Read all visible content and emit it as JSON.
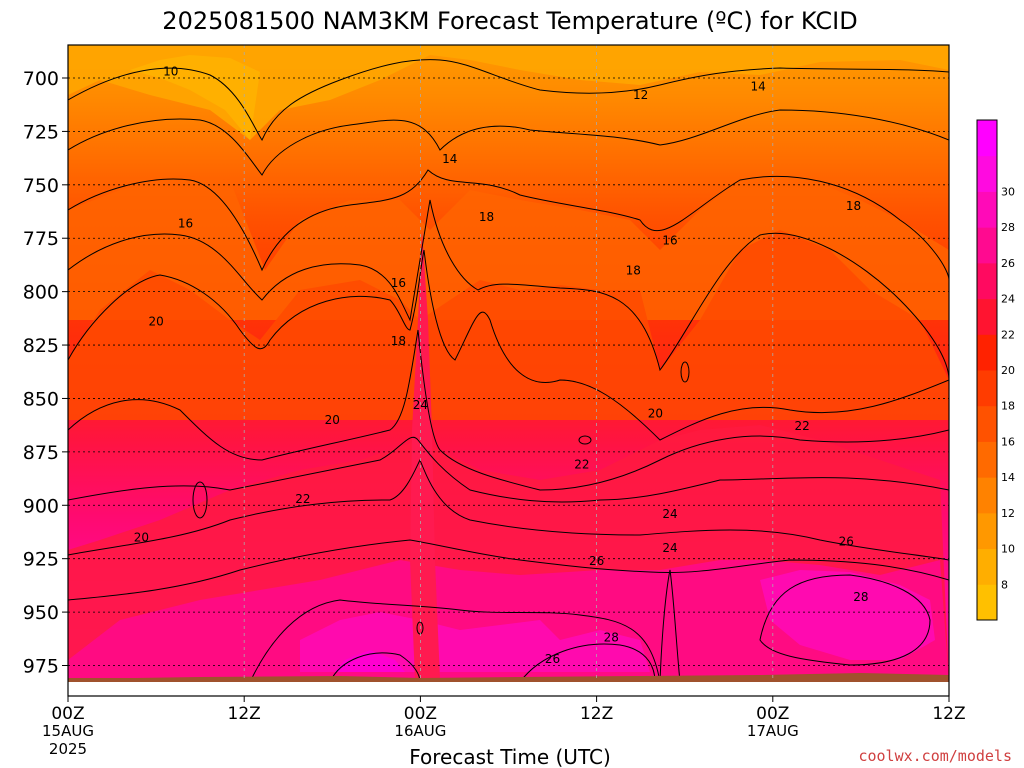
{
  "chart_data": {
    "type": "heatmap",
    "title": "2025081500 NAM3KM Forecast Temperature (ºC) for KCID",
    "xlabel": "Forecast Time (UTC)",
    "ylabel": "",
    "y_ticks": [
      "700",
      "725",
      "750",
      "775",
      "800",
      "825",
      "850",
      "875",
      "900",
      "925",
      "950",
      "975"
    ],
    "y_range": [
      687,
      985
    ],
    "x_hours": [
      0,
      12,
      24,
      36,
      48,
      60
    ],
    "x_ticks": [
      {
        "hour": 0,
        "label": "00Z",
        "sub1": "15AUG",
        "sub2": "2025"
      },
      {
        "hour": 12,
        "label": "12Z",
        "sub1": "",
        "sub2": ""
      },
      {
        "hour": 24,
        "label": "00Z",
        "sub1": "16AUG",
        "sub2": ""
      },
      {
        "hour": 36,
        "label": "12Z",
        "sub1": "",
        "sub2": ""
      },
      {
        "hour": 48,
        "label": "00Z",
        "sub1": "17AUG",
        "sub2": ""
      },
      {
        "hour": 60,
        "label": "12Z",
        "sub1": "",
        "sub2": ""
      }
    ],
    "colorbar": {
      "ticks": [
        "8",
        "10",
        "12",
        "14",
        "16",
        "18",
        "20",
        "22",
        "24",
        "26",
        "28",
        "30"
      ],
      "colors": [
        "#ffc000",
        "#ffae00",
        "#ff9800",
        "#ff8200",
        "#ff6a00",
        "#ff5200",
        "#ff3c00",
        "#ff2200",
        "#ff1430",
        "#ff0a60",
        "#ff0a90",
        "#ff0ab8",
        "#ff0ae0",
        "#ff00ff"
      ]
    },
    "contour_labels": [
      {
        "hour": 7.0,
        "p": 697,
        "text": "10"
      },
      {
        "hour": 39.0,
        "p": 708,
        "text": "12"
      },
      {
        "hour": 47.0,
        "p": 704,
        "text": "14"
      },
      {
        "hour": 26.0,
        "p": 738,
        "text": "14"
      },
      {
        "hour": 8.0,
        "p": 768,
        "text": "16"
      },
      {
        "hour": 41.0,
        "p": 776,
        "text": "16"
      },
      {
        "hour": 22.5,
        "p": 796,
        "text": "16"
      },
      {
        "hour": 28.5,
        "p": 765,
        "text": "18"
      },
      {
        "hour": 53.5,
        "p": 760,
        "text": "18"
      },
      {
        "hour": 38.5,
        "p": 790,
        "text": "18"
      },
      {
        "hour": 22.5,
        "p": 823,
        "text": "18"
      },
      {
        "hour": 6.0,
        "p": 814,
        "text": "20"
      },
      {
        "hour": 18.0,
        "p": 860,
        "text": "20"
      },
      {
        "hour": 40.0,
        "p": 857,
        "text": "20"
      },
      {
        "hour": 5.0,
        "p": 915,
        "text": "20"
      },
      {
        "hour": 24.0,
        "p": 853,
        "text": "24"
      },
      {
        "hour": 50.0,
        "p": 863,
        "text": "22"
      },
      {
        "hour": 35.0,
        "p": 881,
        "text": "22"
      },
      {
        "hour": 16.0,
        "p": 897,
        "text": "22"
      },
      {
        "hour": 41.0,
        "p": 904,
        "text": "24"
      },
      {
        "hour": 41.0,
        "p": 920,
        "text": "24"
      },
      {
        "hour": 53.0,
        "p": 917,
        "text": "26"
      },
      {
        "hour": 36.0,
        "p": 926,
        "text": "26"
      },
      {
        "hour": 54.0,
        "p": 943,
        "text": "28"
      },
      {
        "hour": 37.0,
        "p": 962,
        "text": "28"
      },
      {
        "hour": 33.0,
        "p": 972,
        "text": "26"
      }
    ]
  },
  "credit": "coolwx.com/models"
}
